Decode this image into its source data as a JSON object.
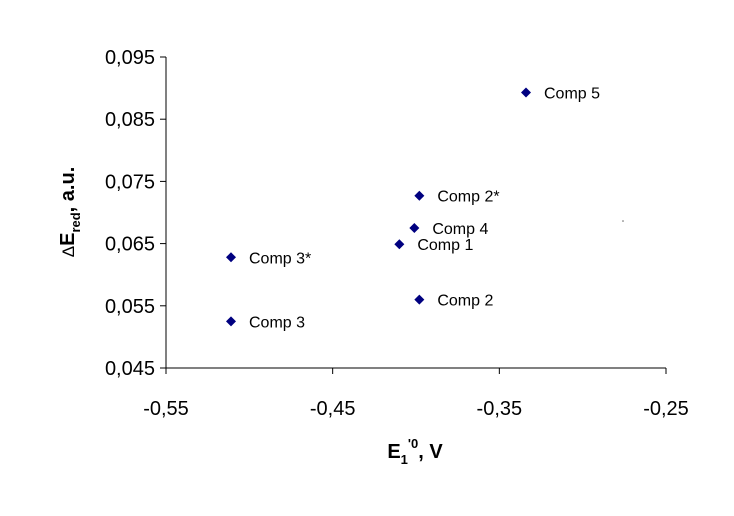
{
  "chart_data": {
    "type": "scatter",
    "xlabel": {
      "main": "E",
      "sub": "1",
      "sup": "'0",
      "suffix": ", V"
    },
    "ylabel": {
      "prefix": "Δ",
      "main": "E",
      "sub": "red",
      "suffix": ", a.u."
    },
    "xlim": [
      -0.55,
      -0.25
    ],
    "ylim": [
      0.045,
      0.095
    ],
    "xticks": [
      -0.55,
      -0.45,
      -0.35,
      -0.25
    ],
    "xtick_labels": [
      "-0,55",
      "-0,45",
      "-0,35",
      "-0,25"
    ],
    "yticks": [
      0.045,
      0.055,
      0.065,
      0.075,
      0.085,
      0.095
    ],
    "ytick_labels": [
      "0,045",
      "0,055",
      "0,065",
      "0,075",
      "0,085",
      "0,095"
    ],
    "grid": false,
    "legend": "none",
    "marker_color": "#000080",
    "points": [
      {
        "label": "Comp 1",
        "x": -0.41,
        "y": 0.0649
      },
      {
        "label": "Comp 2",
        "x": -0.398,
        "y": 0.056
      },
      {
        "label": "Comp 2*",
        "x": -0.398,
        "y": 0.0727
      },
      {
        "label": "Comp 3",
        "x": -0.511,
        "y": 0.0525
      },
      {
        "label": "Comp 3*",
        "x": -0.511,
        "y": 0.0628
      },
      {
        "label": "Comp 4",
        "x": -0.401,
        "y": 0.0675
      },
      {
        "label": "Comp 5",
        "x": -0.334,
        "y": 0.0893
      }
    ]
  }
}
